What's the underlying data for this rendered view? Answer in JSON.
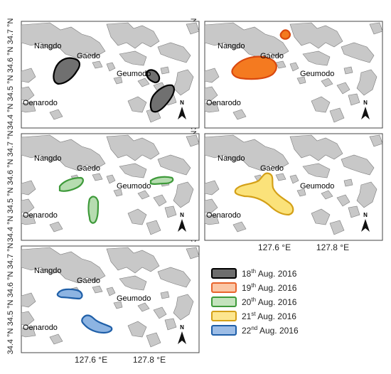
{
  "figure": {
    "y_ticks": [
      "34.7 °N",
      "34.6 °N",
      "34.5 °N",
      "34.4 °N"
    ],
    "x_ticks": [
      "127.6 °E",
      "127.8 °E"
    ],
    "place_names": [
      "Nangdo",
      "Gaedo",
      "Geumodo",
      "Oenarodo"
    ],
    "north_label": "N"
  },
  "panels": [
    {
      "id": "18aug",
      "date_day": "18",
      "date_sup": "th",
      "date_rest": " Aug. 2016",
      "color": "#707070",
      "edge": "#000000"
    },
    {
      "id": "19aug",
      "date_day": "19",
      "date_sup": "th",
      "date_rest": " Aug. 2016",
      "color": "#f47a20",
      "edge": "#d9480f"
    },
    {
      "id": "20aug",
      "date_day": "20",
      "date_sup": "th",
      "date_rest": " Aug. 2016",
      "color": "#b6dcb0",
      "edge": "#3e9a3a"
    },
    {
      "id": "21aug",
      "date_day": "21",
      "date_sup": "st",
      "date_rest": " Aug. 2016",
      "color": "#fbe27a",
      "edge": "#d4a017"
    },
    {
      "id": "22aug",
      "date_day": "22",
      "date_sup": "nd",
      "date_rest": " Aug. 2016",
      "color": "#8db4e2",
      "edge": "#1f5fa8"
    }
  ],
  "legend": [
    {
      "day": "18",
      "sup": "th",
      "rest": " Aug. 2016",
      "fill": "#6e6e6e",
      "stroke": "#000000"
    },
    {
      "day": "19",
      "sup": "th",
      "rest": " Aug. 2016",
      "fill": "#fbc7a6",
      "stroke": "#e8642c"
    },
    {
      "day": "20",
      "sup": "th",
      "rest": " Aug. 2016",
      "fill": "#c4e3bd",
      "stroke": "#3e9a3a"
    },
    {
      "day": "21",
      "sup": "st",
      "rest": " Aug. 2016",
      "fill": "#fde68f",
      "stroke": "#d4a017"
    },
    {
      "day": "22",
      "sup": "nd",
      "rest": " Aug. 2016",
      "fill": "#9dbde6",
      "stroke": "#1f5fa8"
    }
  ]
}
